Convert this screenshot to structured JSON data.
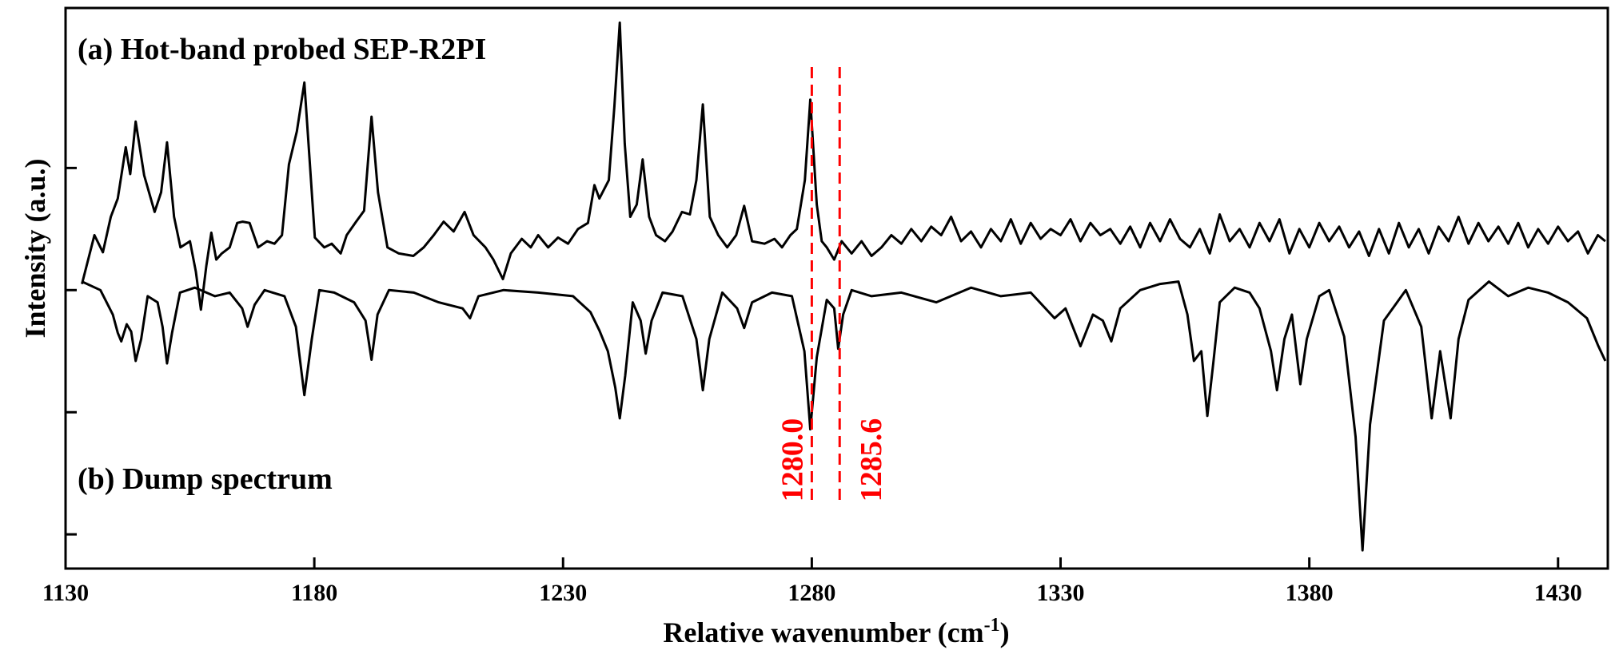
{
  "chart_data": {
    "type": "line",
    "xlabel": [
      "Relative wavenumber (cm",
      "-1",
      ")"
    ],
    "ylabel": "Intensity (a.u.)",
    "annotations": [
      "(a) Hot-band probed SEP-R2PI",
      "(b) Dump spectrum"
    ],
    "xlim": [
      1130,
      1440
    ],
    "xticks": [
      1130,
      1180,
      1230,
      1280,
      1330,
      1380,
      1430
    ],
    "ylim": [
      0.72,
      5.31
    ],
    "yticks": [
      1,
      2,
      3,
      4
    ],
    "markers": [
      {
        "x": 1280.0,
        "label": "1280.0",
        "color": "#ff0000"
      },
      {
        "x": 1285.6,
        "label": "1285.6",
        "color": "#ff0000"
      }
    ],
    "series": [
      {
        "color": "#000000",
        "x": [
          1133.3,
          1135.8,
          1137.5,
          1139.1,
          1140.5,
          1142.1,
          1143,
          1144.1,
          1145.8,
          1147.9,
          1149.2,
          1150.4,
          1151.8,
          1153.1,
          1155,
          1156.2,
          1157.2,
          1158.3,
          1159.3,
          1160.3,
          1161.4,
          1163,
          1164.5,
          1165.6,
          1167,
          1168.7,
          1170.5,
          1172,
          1173.5,
          1174.9,
          1176.5,
          1178,
          1179,
          1180.1,
          1182,
          1183.5,
          1185.3,
          1186.5,
          1188.4,
          1190,
          1191.5,
          1192.8,
          1194.7,
          1197,
          1199.9,
          1202,
          1204,
          1206,
          1208,
          1210.2,
          1212,
          1214.4,
          1216,
          1217.9,
          1219.5,
          1221.7,
          1223.5,
          1225,
          1227,
          1229,
          1231,
          1233,
          1235,
          1236.3,
          1237.3,
          1239.2,
          1240.3,
          1241.4,
          1242.4,
          1243.5,
          1244.8,
          1246,
          1247.3,
          1248.7,
          1250.5,
          1252,
          1253.9,
          1255.5,
          1256.8,
          1258.1,
          1259.5,
          1261.2,
          1263,
          1264.8,
          1266.4,
          1268,
          1270.5,
          1272.5,
          1274,
          1275.7,
          1277,
          1278.6,
          1279.7,
          1281,
          1282,
          1283,
          1284.5,
          1286,
          1288,
          1290,
          1292,
          1294,
          1296,
          1298,
          1300,
          1302,
          1304,
          1306,
          1308,
          1310,
          1312,
          1314,
          1316,
          1318,
          1320,
          1322,
          1324,
          1326,
          1328,
          1330,
          1332,
          1334,
          1336,
          1338,
          1340,
          1342,
          1344,
          1346,
          1348,
          1350,
          1352,
          1354,
          1356,
          1358,
          1360,
          1362,
          1364,
          1366,
          1368,
          1370,
          1372,
          1374,
          1376,
          1378,
          1380,
          1382,
          1384,
          1386,
          1388,
          1390,
          1392,
          1394,
          1396,
          1398,
          1400,
          1402,
          1404,
          1406,
          1408,
          1410,
          1412,
          1414,
          1416,
          1418,
          1420,
          1422,
          1424,
          1426,
          1428,
          1430,
          1432,
          1434,
          1436,
          1438,
          1439.5
        ],
        "values": [
          3.05,
          3.45,
          3.31,
          3.6,
          3.75,
          4.17,
          3.95,
          4.38,
          3.94,
          3.64,
          3.8,
          4.21,
          3.6,
          3.35,
          3.4,
          3.15,
          2.84,
          3.2,
          3.47,
          3.25,
          3.3,
          3.35,
          3.55,
          3.56,
          3.55,
          3.35,
          3.4,
          3.38,
          3.45,
          4.03,
          4.3,
          4.7,
          4.1,
          3.43,
          3.35,
          3.38,
          3.3,
          3.45,
          3.56,
          3.65,
          4.42,
          3.8,
          3.35,
          3.3,
          3.28,
          3.35,
          3.45,
          3.56,
          3.48,
          3.64,
          3.45,
          3.35,
          3.25,
          3.09,
          3.3,
          3.42,
          3.35,
          3.45,
          3.35,
          3.43,
          3.38,
          3.5,
          3.55,
          3.86,
          3.75,
          3.9,
          4.5,
          5.19,
          4.2,
          3.6,
          3.7,
          4.07,
          3.6,
          3.45,
          3.4,
          3.48,
          3.64,
          3.62,
          3.9,
          4.52,
          3.6,
          3.45,
          3.35,
          3.45,
          3.69,
          3.4,
          3.38,
          3.42,
          3.35,
          3.45,
          3.5,
          3.9,
          4.56,
          3.7,
          3.4,
          3.35,
          3.25,
          3.4,
          3.3,
          3.4,
          3.28,
          3.35,
          3.45,
          3.38,
          3.5,
          3.4,
          3.52,
          3.45,
          3.6,
          3.4,
          3.48,
          3.35,
          3.5,
          3.4,
          3.58,
          3.38,
          3.55,
          3.42,
          3.5,
          3.45,
          3.58,
          3.4,
          3.55,
          3.45,
          3.5,
          3.38,
          3.52,
          3.35,
          3.55,
          3.4,
          3.58,
          3.42,
          3.35,
          3.5,
          3.3,
          3.62,
          3.4,
          3.5,
          3.35,
          3.55,
          3.4,
          3.58,
          3.3,
          3.5,
          3.35,
          3.55,
          3.4,
          3.52,
          3.35,
          3.48,
          3.28,
          3.5,
          3.3,
          3.55,
          3.35,
          3.5,
          3.3,
          3.52,
          3.4,
          3.6,
          3.38,
          3.55,
          3.4,
          3.52,
          3.38,
          3.55,
          3.35,
          3.5,
          3.38,
          3.52,
          3.4,
          3.48,
          3.3,
          3.45,
          3.4
        ]
      },
      {
        "color": "#000000",
        "x": [
          1133.3,
          1137,
          1139.5,
          1140.5,
          1141.2,
          1142.3,
          1143.2,
          1144.1,
          1145.2,
          1146.5,
          1148.5,
          1149.5,
          1150.4,
          1151.4,
          1153,
          1156,
          1160,
          1163,
          1165.5,
          1166.6,
          1168,
          1170,
          1174,
          1176.3,
          1178,
          1179.5,
          1181,
          1184,
          1188,
          1190.3,
          1191.5,
          1192.7,
          1195,
          1200,
          1205,
          1209.8,
          1211.3,
          1213,
          1218,
          1225,
          1232,
          1235.5,
          1237.3,
          1239,
          1240.5,
          1241.4,
          1242.5,
          1244,
          1245.6,
          1246.6,
          1247.8,
          1250,
          1254,
          1256.8,
          1258.1,
          1259.4,
          1262,
          1265,
          1266.4,
          1268,
          1272,
          1276,
          1278.5,
          1279.7,
          1281,
          1283,
          1284.5,
          1285.3,
          1286.3,
          1288,
          1292,
          1298,
          1305,
          1312,
          1318,
          1324,
          1328.8,
          1331,
          1334,
          1336.5,
          1338.5,
          1340.2,
          1342,
          1346,
          1350,
          1353.7,
          1355.5,
          1356.8,
          1358.3,
          1359.5,
          1360.7,
          1362,
          1365,
          1368,
          1370,
          1372.3,
          1373.5,
          1375,
          1376.5,
          1378.2,
          1379.5,
          1382,
          1384,
          1387,
          1389.3,
          1390.7,
          1392.2,
          1395,
          1399.4,
          1402.5,
          1404.6,
          1406.3,
          1408.4,
          1410,
          1412,
          1416.1,
          1420,
          1424,
          1428,
          1432,
          1435.8,
          1438,
          1439.5
        ],
        "values": [
          3.07,
          3.0,
          2.8,
          2.65,
          2.58,
          2.72,
          2.66,
          2.42,
          2.6,
          2.95,
          2.9,
          2.7,
          2.4,
          2.65,
          2.98,
          3.02,
          2.95,
          2.98,
          2.85,
          2.7,
          2.88,
          3.0,
          2.95,
          2.7,
          2.14,
          2.6,
          3.0,
          2.98,
          2.9,
          2.75,
          2.43,
          2.8,
          3.0,
          2.98,
          2.9,
          2.85,
          2.77,
          2.95,
          3.0,
          2.98,
          2.95,
          2.82,
          2.67,
          2.5,
          2.2,
          1.95,
          2.3,
          2.9,
          2.75,
          2.48,
          2.75,
          2.98,
          2.95,
          2.6,
          2.18,
          2.6,
          2.98,
          2.85,
          2.69,
          2.9,
          2.98,
          2.95,
          2.5,
          1.86,
          2.45,
          2.92,
          2.85,
          2.52,
          2.8,
          3.0,
          2.95,
          2.98,
          2.9,
          3.02,
          2.95,
          2.98,
          2.77,
          2.85,
          2.54,
          2.8,
          2.75,
          2.58,
          2.85,
          3.0,
          3.05,
          3.07,
          2.8,
          2.42,
          2.5,
          1.97,
          2.4,
          2.9,
          3.02,
          2.98,
          2.85,
          2.5,
          2.18,
          2.6,
          2.8,
          2.23,
          2.6,
          2.95,
          3.0,
          2.62,
          1.8,
          0.87,
          1.9,
          2.75,
          3.0,
          2.7,
          1.95,
          2.5,
          1.95,
          2.6,
          2.92,
          3.07,
          2.95,
          3.02,
          2.98,
          2.9,
          2.77,
          2.55,
          2.42
        ]
      }
    ]
  }
}
